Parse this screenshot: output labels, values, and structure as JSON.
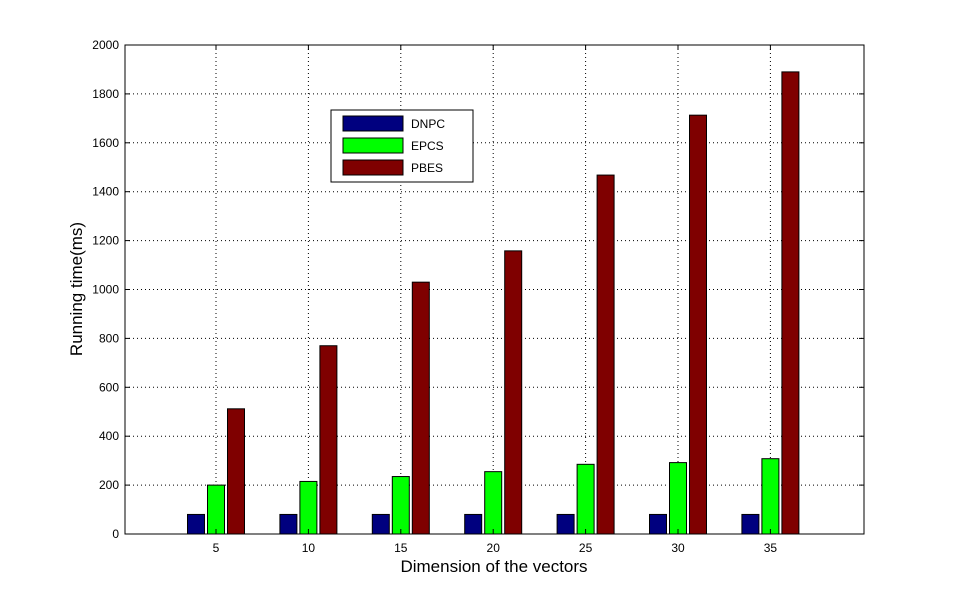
{
  "chart_data": {
    "type": "bar",
    "title": "",
    "xlabel": "Dimension of the vectors",
    "ylabel": "Running time(ms)",
    "categories": [
      "5",
      "10",
      "15",
      "20",
      "25",
      "30",
      "35"
    ],
    "ylim": [
      0,
      2000
    ],
    "yticks": [
      "0",
      "200",
      "400",
      "600",
      "800",
      "1000",
      "1200",
      "1400",
      "1600",
      "1800",
      "2000"
    ],
    "grid": true,
    "legend_position": "top-left",
    "series": [
      {
        "name": "DNPC",
        "color": "#00007f",
        "values": [
          80,
          80,
          80,
          80,
          80,
          80,
          80
        ]
      },
      {
        "name": "EPCS",
        "color": "#00ff00",
        "values": [
          200,
          215,
          235,
          255,
          285,
          292,
          308
        ]
      },
      {
        "name": "PBES",
        "color": "#7f0000",
        "values": [
          512,
          770,
          1030,
          1158,
          1468,
          1713,
          1890
        ]
      }
    ]
  }
}
